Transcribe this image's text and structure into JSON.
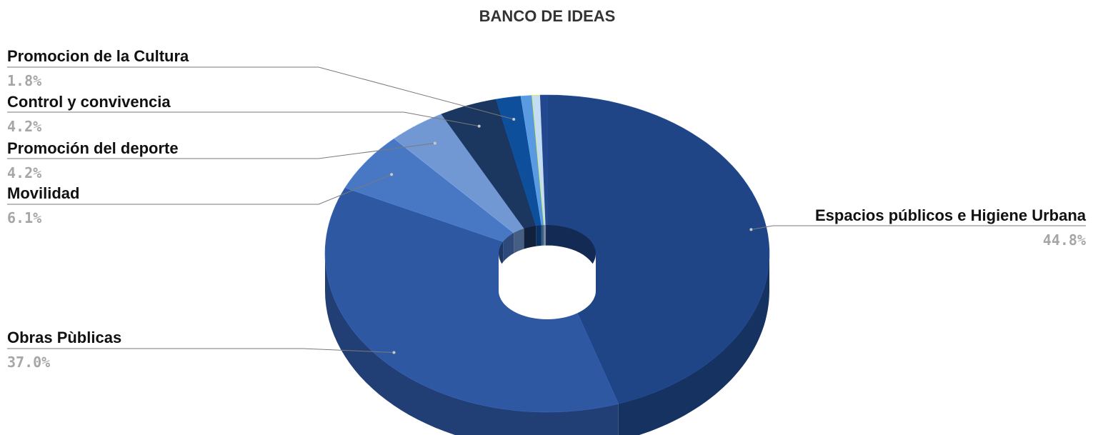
{
  "chart_data": {
    "type": "pie",
    "title": "BANCO DE IDEAS",
    "categories": [
      "Espacios públicos e Higiene Urbana",
      "Obras Pùblicas",
      "Movilidad",
      "Promoción del deporte",
      "Control y convivencia",
      "Promocion de la Cultura",
      "",
      "",
      ""
    ],
    "values": [
      44.8,
      37.0,
      6.1,
      4.2,
      4.2,
      1.8,
      0.8,
      0.6,
      0.5
    ],
    "value_labels": [
      "44.8%",
      "37.0%",
      "6.1%",
      "4.2%",
      "4.2%",
      "1.8%",
      "",
      "",
      ""
    ],
    "colors": [
      "#1f4587",
      "#2f58a3",
      "#4878c4",
      "#7298d4",
      "#1b365f",
      "#0e4f9c",
      "#5a9ae0",
      "#c4dcf4",
      "#23478f"
    ],
    "legend": "none",
    "style": "3d-donut"
  }
}
